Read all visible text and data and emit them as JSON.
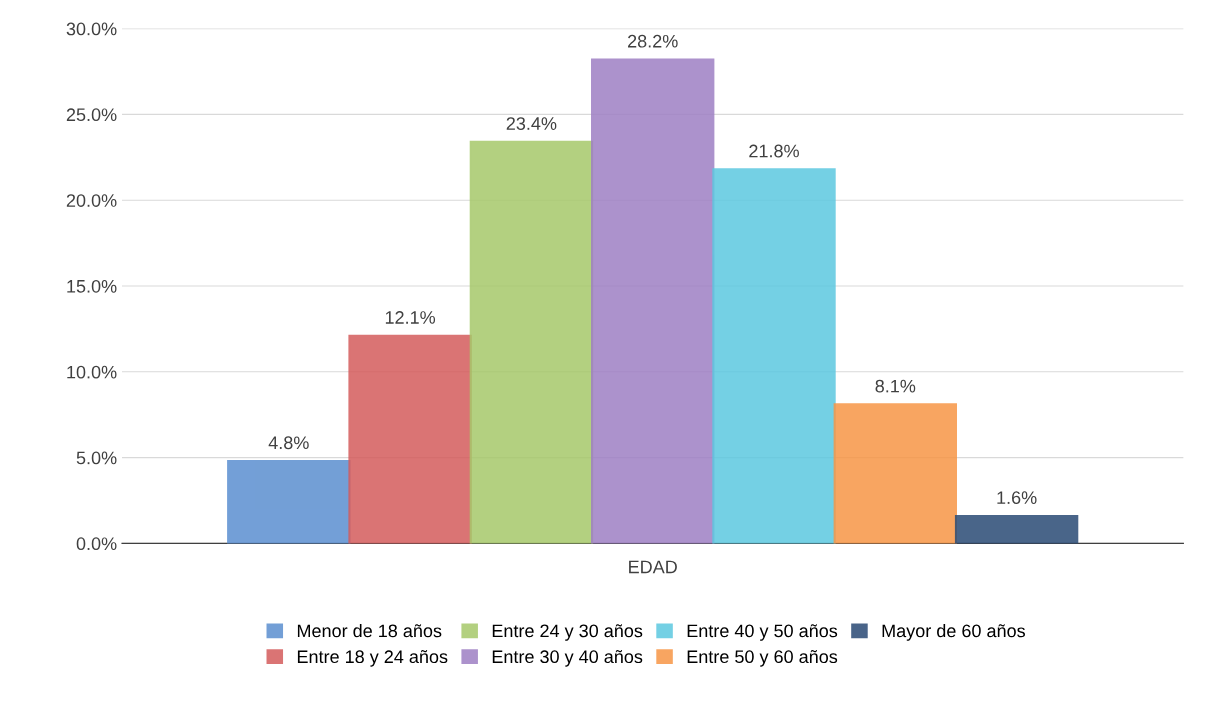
{
  "chart_data": {
    "type": "bar",
    "categories": [
      "EDAD"
    ],
    "series": [
      {
        "name": "Menor de 18 años",
        "color": "#5b8fd0",
        "values": [
          4.8
        ],
        "value_labels": [
          "4.8%"
        ]
      },
      {
        "name": "Entre 18 y 24 años",
        "color": "#d45c5c",
        "values": [
          12.1
        ],
        "value_labels": [
          "12.1%"
        ]
      },
      {
        "name": "Entre 24 y 30 años",
        "color": "#a6c86a",
        "values": [
          23.4
        ],
        "value_labels": [
          "23.4%"
        ]
      },
      {
        "name": "Entre 30 y 40 años",
        "color": "#9e7fc4",
        "values": [
          28.2
        ],
        "value_labels": [
          "28.2%"
        ]
      },
      {
        "name": "Entre 40 y 50 años",
        "color": "#5cc8e0",
        "values": [
          21.8
        ],
        "value_labels": [
          "21.8%"
        ]
      },
      {
        "name": "Entre 50 y 60 años",
        "color": "#f79646",
        "values": [
          8.1
        ],
        "value_labels": [
          "8.1%"
        ]
      },
      {
        "name": "Mayor de 60 años",
        "color": "#2a4a75",
        "values": [
          1.6
        ],
        "value_labels": [
          "1.6%"
        ]
      }
    ],
    "ylim": [
      0,
      30
    ],
    "yticks": [
      {
        "value": 0,
        "label": "0.0%"
      },
      {
        "value": 5,
        "label": "5.0%"
      },
      {
        "value": 10,
        "label": "10.0%"
      },
      {
        "value": 15,
        "label": "15.0%"
      },
      {
        "value": 20,
        "label": "20.0%"
      },
      {
        "value": 25,
        "label": "25.0%"
      },
      {
        "value": 30,
        "label": "30.0%"
      }
    ],
    "grid": "y",
    "legend": "bottom"
  }
}
